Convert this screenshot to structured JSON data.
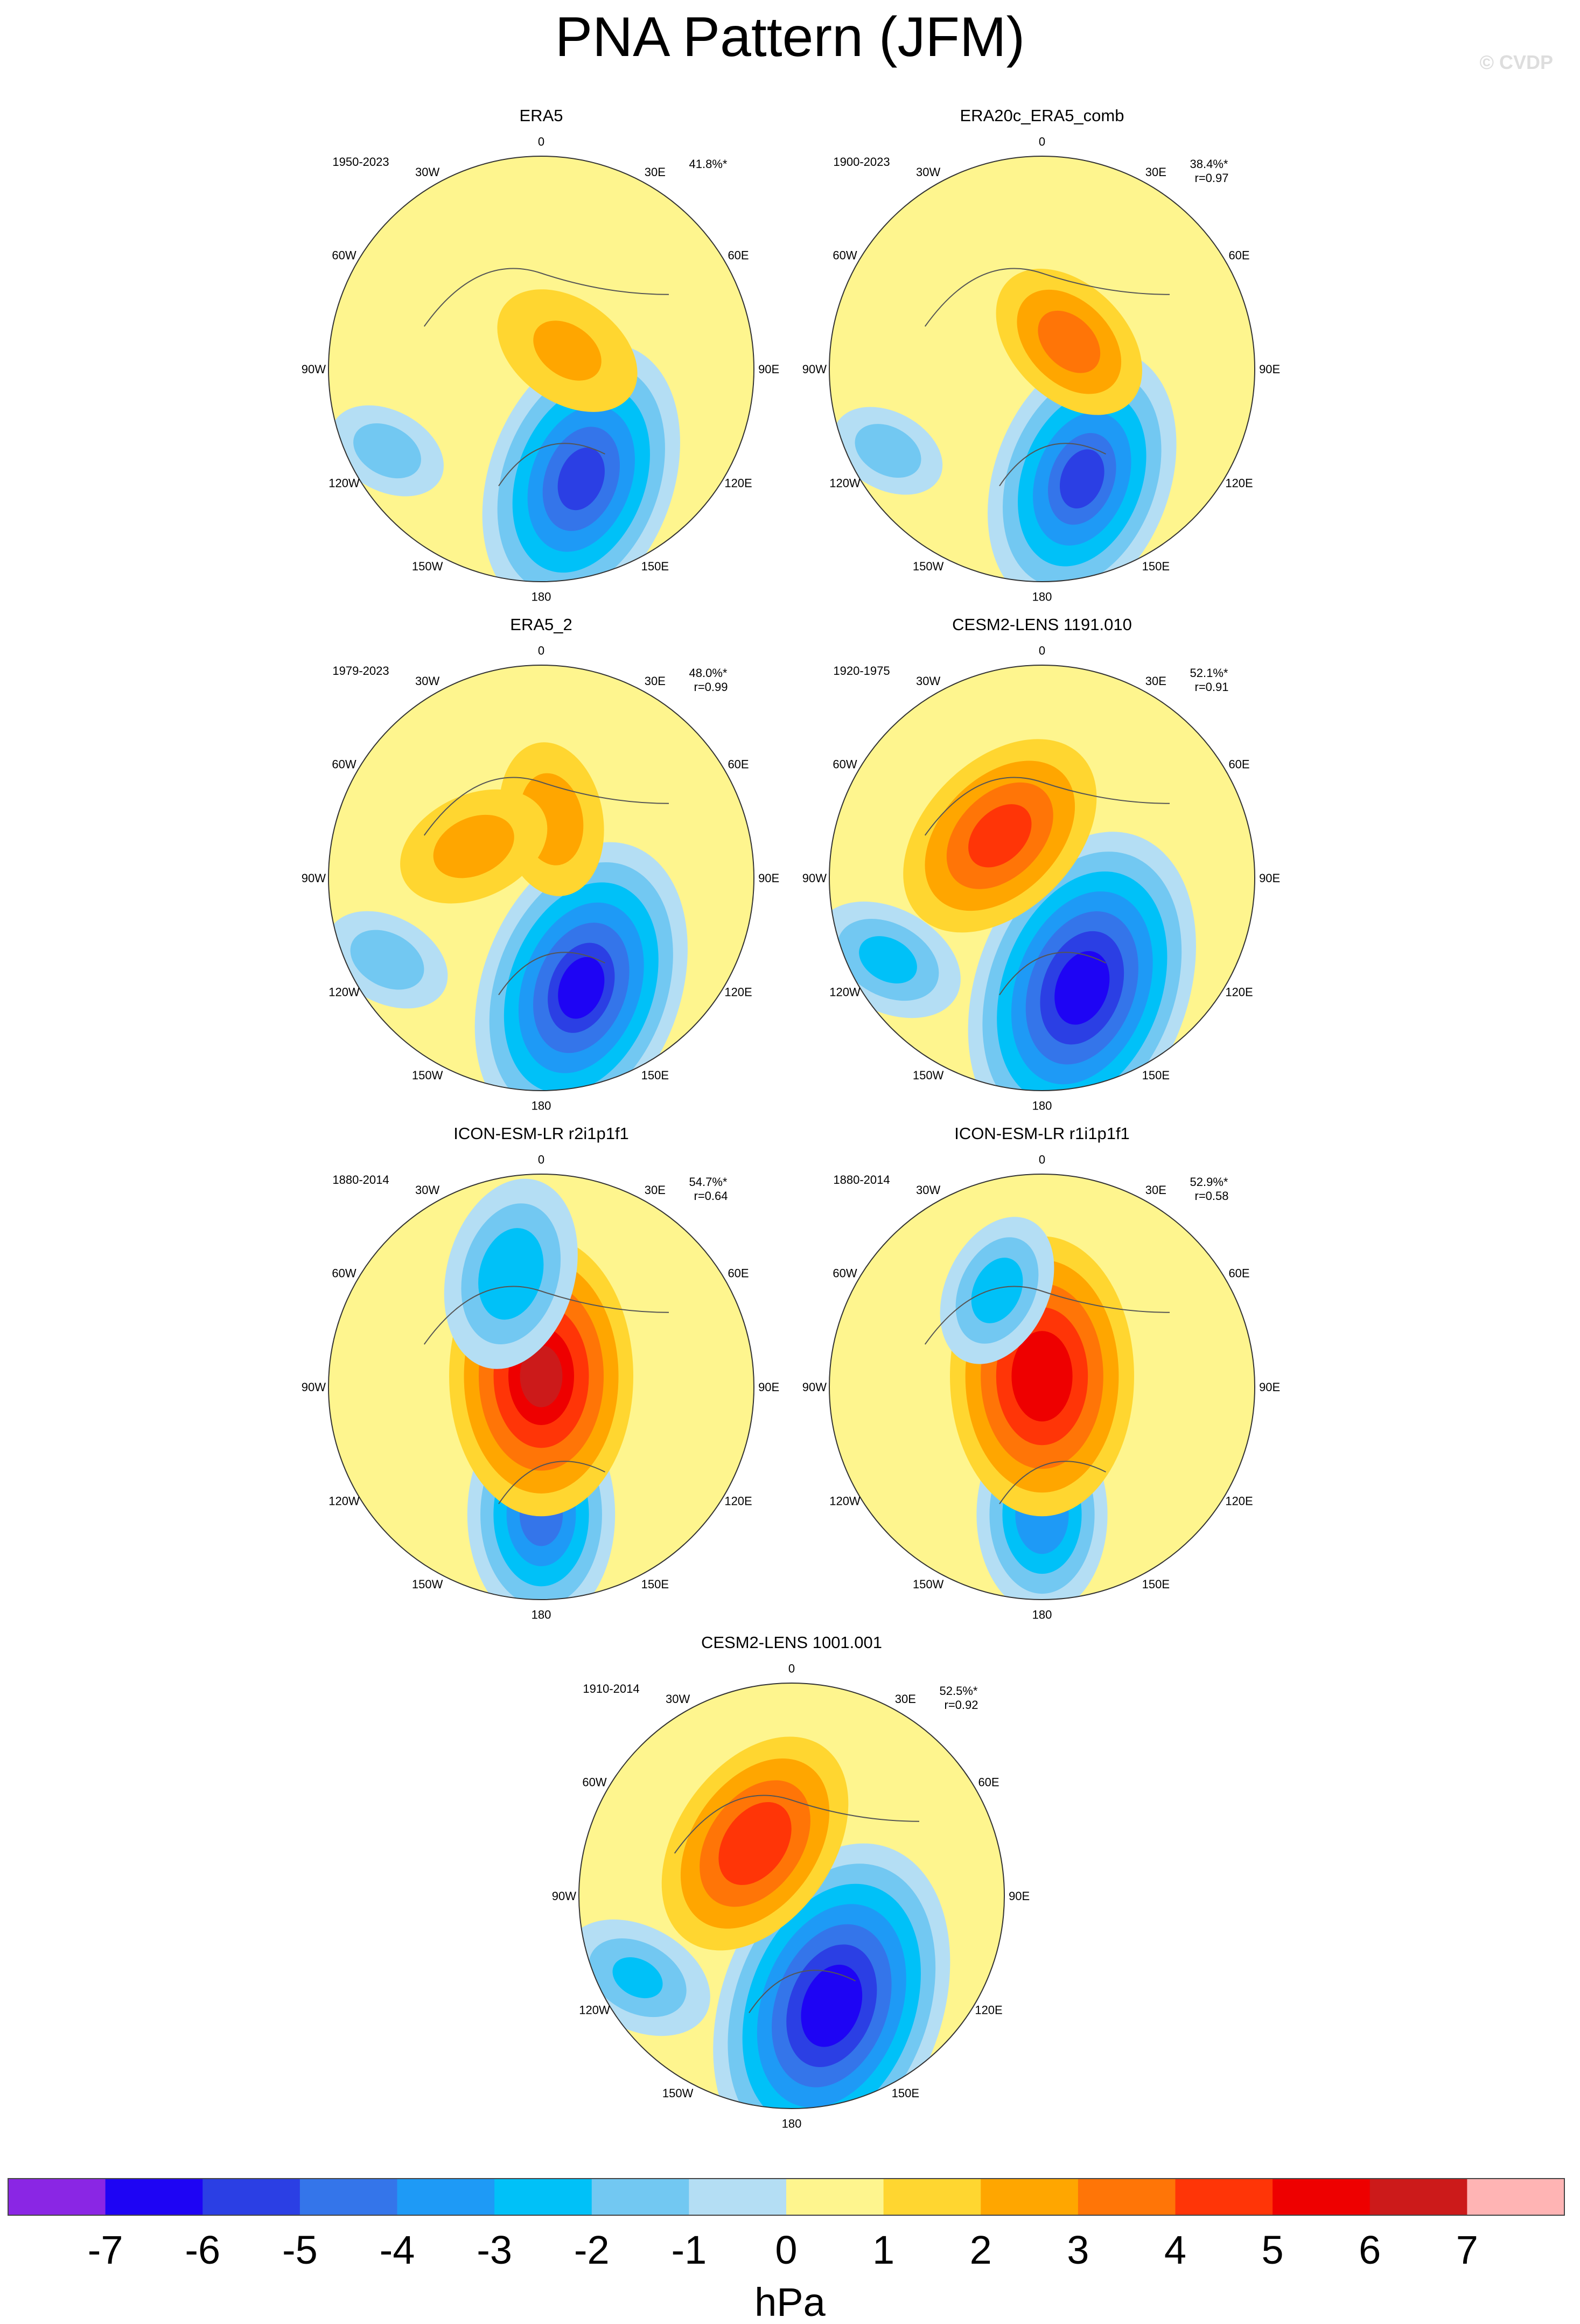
{
  "title": "PNA Pattern (JFM)",
  "copyright": "© CVDP",
  "unit_label": "hPa",
  "chart_data": {
    "type": "heatmap",
    "projection": "north polar stereographic",
    "variable": "sea level pressure regression pattern",
    "units": "hPa",
    "colorbar": {
      "ticks": [
        "-7",
        "-6",
        "-5",
        "-4",
        "-3",
        "-2",
        "-1",
        "0",
        "1",
        "2",
        "3",
        "4",
        "5",
        "6",
        "7"
      ],
      "bounds": [
        -7,
        -6,
        -5,
        -4,
        -3,
        -2,
        -1,
        0,
        1,
        2,
        3,
        4,
        5,
        6,
        7
      ],
      "colors": [
        "#8a26e4",
        "#1e04f4",
        "#2b3fe4",
        "#3475ea",
        "#1e9af6",
        "#00c1f8",
        "#72c8f2",
        "#b4def4",
        "#fef58e",
        "#ffd630",
        "#ffa600",
        "#ff7507",
        "#ff3507",
        "#ee0000",
        "#cc1a1a",
        "#ffb4b4"
      ]
    },
    "longitude_labels": [
      "180",
      "150E",
      "120E",
      "90E",
      "60E",
      "30E",
      "0",
      "30W",
      "60W",
      "90W",
      "120W",
      "150W"
    ],
    "panels": [
      {
        "title": "ERA5",
        "years": "1950-2023",
        "pct": "41.8%*",
        "r": "",
        "blobs": [
          {
            "lon": 160,
            "r": 0.55,
            "a": 5.5,
            "value": -5.5
          },
          {
            "lon": 55,
            "r": 0.15,
            "a": 2.6,
            "value": 1.4
          },
          {
            "lon": -118,
            "r": 0.82,
            "a": 1.8,
            "value": -1.6
          }
        ]
      },
      {
        "title": "ERA20c_ERA5_comb",
        "years": "1900-2023",
        "pct": "38.4%*",
        "r": "r=0.97",
        "blobs": [
          {
            "lon": 160,
            "r": 0.55,
            "a": 5.2,
            "value": -5.2
          },
          {
            "lon": 45,
            "r": 0.18,
            "a": 3.0,
            "value": 2.6
          },
          {
            "lon": -118,
            "r": 0.82,
            "a": 1.7,
            "value": -1.6
          }
        ]
      },
      {
        "title": "ERA5_2",
        "years": "1979-2023",
        "pct": "48.0%*",
        "r": "r=0.99",
        "blobs": [
          {
            "lon": 160,
            "r": 0.55,
            "a": 6.0,
            "value": -6.2
          },
          {
            "lon": 10,
            "r": 0.28,
            "a": 2.6,
            "value": 1.8
          },
          {
            "lon": -65,
            "r": 0.35,
            "a": 2.6,
            "value": 1.6
          },
          {
            "lon": -118,
            "r": 0.82,
            "a": 2.0,
            "value": -1.7
          }
        ]
      },
      {
        "title": "CESM2-LENS 1191.010",
        "years": "1920-1975",
        "pct": "52.1%*",
        "r": "r=0.91",
        "blobs": [
          {
            "lon": 160,
            "r": 0.55,
            "a": 6.5,
            "value": -6.8
          },
          {
            "lon": -45,
            "r": 0.28,
            "a": 4.3,
            "value": 3.6
          },
          {
            "lon": -118,
            "r": 0.82,
            "a": 2.6,
            "value": -2.4
          }
        ]
      },
      {
        "title": "ICON-ESM-LR r2i1p1f1",
        "years": "1880-2014",
        "pct": "54.7%*",
        "r": "r=0.64",
        "blobs": [
          {
            "lon": 180,
            "r": 0.6,
            "a": 4.2,
            "value": -4.5
          },
          {
            "lon": 0,
            "r": 0.05,
            "a": 5.5,
            "value": 5.2
          },
          {
            "lon": -15,
            "r": 0.55,
            "a": 3.5,
            "value": -3.0
          }
        ]
      },
      {
        "title": "ICON-ESM-LR r1i1p1f1",
        "years": "1880-2014",
        "pct": "52.9%*",
        "r": "r=0.58",
        "blobs": [
          {
            "lon": 180,
            "r": 0.6,
            "a": 3.6,
            "value": -3.9
          },
          {
            "lon": 0,
            "r": 0.05,
            "a": 5.5,
            "value": 5.0
          },
          {
            "lon": -25,
            "r": 0.5,
            "a": 2.6,
            "value": -2.6
          }
        ]
      },
      {
        "title": "CESM2-LENS 1001.001",
        "years": "1910-2014",
        "pct": "52.5%*",
        "r": "r=0.92",
        "blobs": [
          {
            "lon": 160,
            "r": 0.55,
            "a": 6.8,
            "value": -7.0
          },
          {
            "lon": -35,
            "r": 0.3,
            "a": 4.5,
            "value": 4.0
          },
          {
            "lon": -118,
            "r": 0.82,
            "a": 2.6,
            "value": -2.2
          }
        ]
      }
    ]
  }
}
